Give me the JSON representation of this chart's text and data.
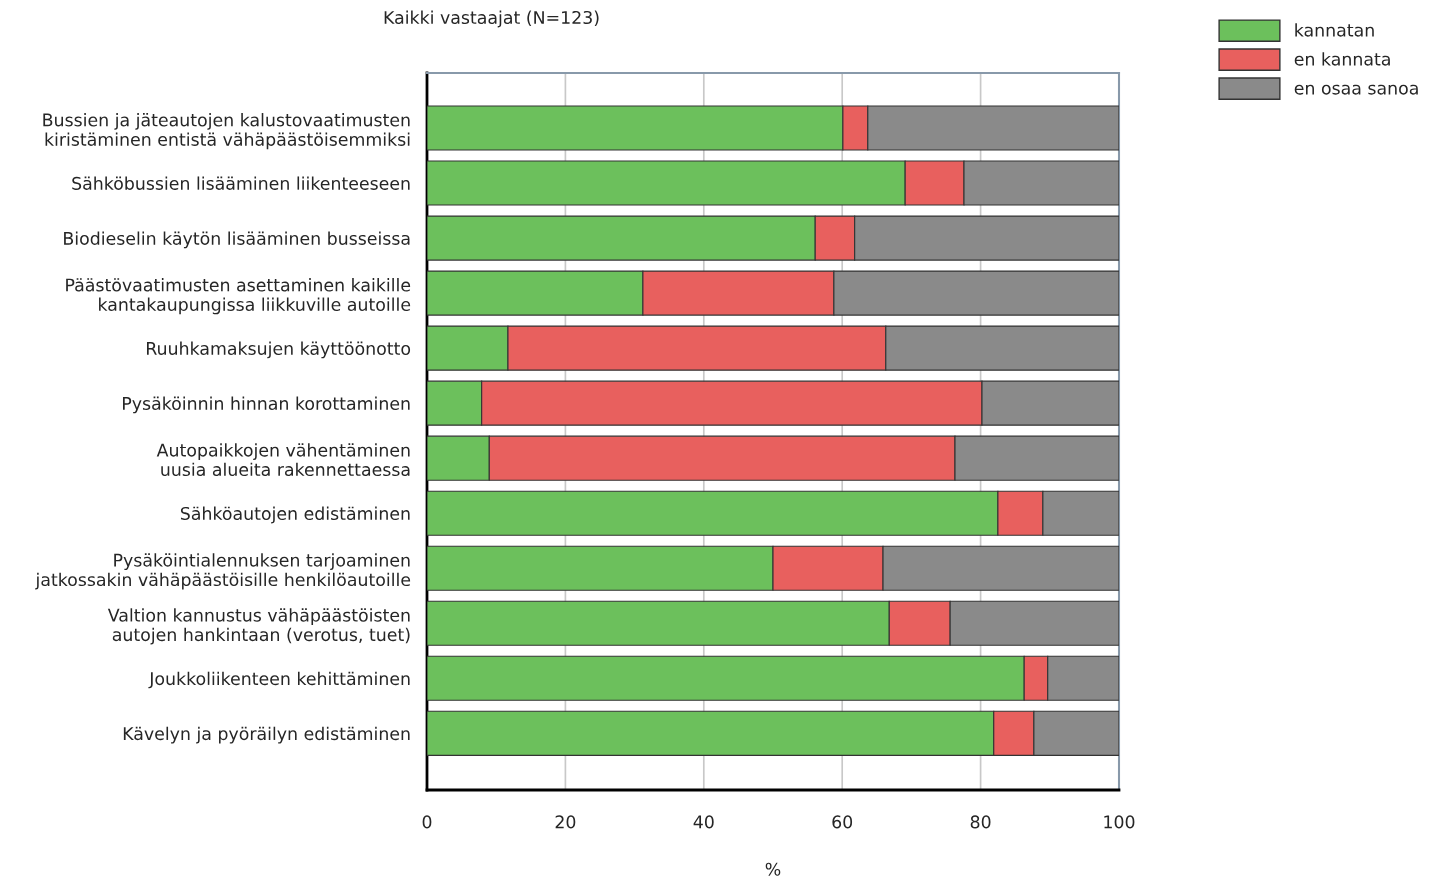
{
  "chart_data": {
    "type": "bar",
    "orientation": "horizontal",
    "stacked": true,
    "title": "Kaikki vastaajat (N=123)",
    "xlabel": "%",
    "categories": [
      "Bussien ja jäteautojen kalustovaatimusten\nkiristäminen entistä vähäpäästöisemmiksi",
      "Sähköbussien lisääminen liikenteeseen",
      "Biodieselin käytön lisääminen busseissa",
      "Päästövaatimusten asettaminen kaikille\nkantakaupungissa liikkuville autoille",
      "Ruuhkamaksujen käyttöönotto",
      "Pysäköinnin hinnan korottaminen",
      "Autopaikkojen vähentäminen\nuusia alueita rakennettaessa",
      "Sähköautojen edistäminen",
      "Pysäköintialennuksen tarjoaminen\njatkossakin vähäpäästöisille henkilöautoille",
      "Valtion kannustus vähäpäästöisten\nautojen hankintaan (verotus, tuet)",
      "Joukkoliikenteen kehittäminen",
      "Kävelyn ja pyöräilyn edistäminen"
    ],
    "series": [
      {
        "name": "kannatan",
        "color": "#6cc05c",
        "values": [
          60.1,
          69.1,
          56.1,
          31.2,
          11.7,
          7.9,
          9.0,
          82.5,
          50.0,
          66.8,
          86.3,
          81.9
        ]
      },
      {
        "name": "en kannata",
        "color": "#e8605e",
        "values": [
          3.6,
          8.5,
          5.7,
          27.6,
          54.6,
          72.3,
          67.3,
          6.5,
          15.9,
          8.8,
          3.4,
          5.8
        ]
      },
      {
        "name": "en osaa sanoa",
        "color": "#8a8a8a",
        "values": [
          36.3,
          22.4,
          38.2,
          41.2,
          33.7,
          19.8,
          23.7,
          11.0,
          34.1,
          24.4,
          10.3,
          12.3
        ]
      }
    ],
    "xlim": [
      0,
      100
    ],
    "xticks": [
      0,
      20,
      40,
      60,
      80,
      100
    ],
    "grid": "x",
    "legend": "top right"
  }
}
